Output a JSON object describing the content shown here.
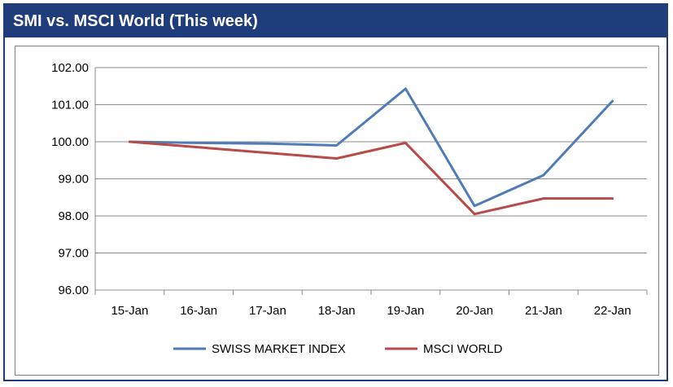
{
  "chart_data": {
    "type": "line",
    "title": "SMI vs. MSCI World (This week)",
    "xlabel": "",
    "ylabel": "",
    "categories": [
      "15-Jan",
      "16-Jan",
      "17-Jan",
      "18-Jan",
      "19-Jan",
      "20-Jan",
      "21-Jan",
      "22-Jan"
    ],
    "ylim": [
      96,
      102
    ],
    "yticks": [
      "96.00",
      "97.00",
      "98.00",
      "99.00",
      "100.00",
      "101.00",
      "102.00"
    ],
    "grid": true,
    "legend_position": "bottom",
    "series": [
      {
        "name": "SWISS MARKET INDEX",
        "color": "#4f7bb8",
        "values": [
          100.0,
          99.97,
          99.95,
          99.9,
          101.43,
          98.27,
          99.1,
          101.1
        ]
      },
      {
        "name": "MSCI WORLD",
        "color": "#b84a47",
        "values": [
          100.0,
          99.85,
          99.7,
          99.55,
          99.97,
          98.05,
          98.47,
          98.47
        ]
      }
    ]
  }
}
